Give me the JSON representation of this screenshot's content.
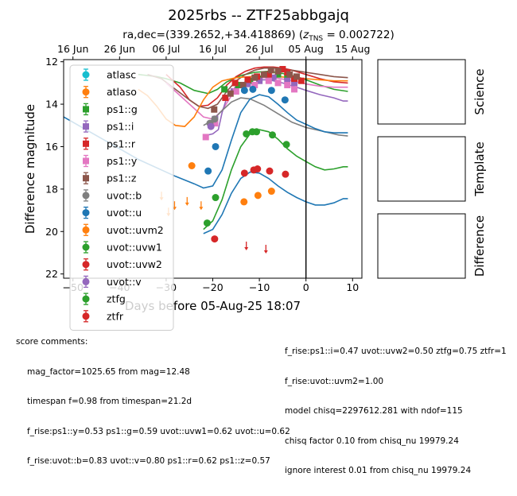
{
  "figure": {
    "title": "2025rbs -- ZTF25abbgajq",
    "subtitle_prefix": "ra,dec=(339.2652,+34.418869) (",
    "subtitle_z": "z",
    "subtitle_sub": "TNS",
    "subtitle_suffix": " = 0.002722)"
  },
  "side_panels": [
    "Science",
    "Template",
    "Difference"
  ],
  "score_comments": {
    "header": "score comments:",
    "left": [
      "mag_factor=1025.65 from mag=12.48",
      "timespan f=0.98 from timespan=21.2d",
      "f_rise:ps1::y=0.53 ps1::g=0.59 uvot::uvw1=0.62 uvot::u=0.62",
      "f_rise:uvot::b=0.83 uvot::v=0.80 ps1::r=0.62 ps1::z=0.57"
    ],
    "right": [
      "f_rise:ps1::i=0.47 uvot::uvw2=0.50 ztfg=0.75 ztfr=1",
      "f_rise:uvot::uvm2=1.00",
      "model chisq=2297612.281 with ndof=115",
      "chisq factor 0.10 from chisq_nu 19979.24",
      "ignore interest 0.01 from chisq_nu 19979.24"
    ]
  },
  "chart_data": {
    "type": "scatter",
    "xlabel": "Days before 05-Aug-25 18:07",
    "ylabel": "Difference magnitude",
    "xlim": [
      -52,
      12
    ],
    "ylim": [
      22.2,
      11.9
    ],
    "y_inverted": true,
    "x_ticks": [
      -50,
      -40,
      -30,
      -20,
      -10,
      0,
      10
    ],
    "x_tick_labels": [
      "−50",
      "−40",
      "−30",
      "−20",
      "−10",
      "0",
      "10"
    ],
    "y_ticks": [
      12,
      14,
      16,
      18,
      20,
      22
    ],
    "top_axis_ticks": [
      {
        "label": "16 Jun",
        "x": -50
      },
      {
        "label": "26 Jun",
        "x": -40
      },
      {
        "label": "06 Jul",
        "x": -30
      },
      {
        "label": "16 Jul",
        "x": -20
      },
      {
        "label": "26 Jul",
        "x": -10
      },
      {
        "label": "05 Aug",
        "x": 0
      },
      {
        "label": "15 Aug",
        "x": 10
      }
    ],
    "vline_x": 0,
    "legend_position": "upper-left",
    "series": [
      {
        "name": "atlasc",
        "color": "#17becf",
        "marker": "circle",
        "points": []
      },
      {
        "name": "atlaso",
        "color": "#ff7f0e",
        "marker": "circle",
        "points": [
          [
            -24.5,
            16.9
          ],
          [
            -13.3,
            18.6
          ],
          [
            -10.3,
            18.3
          ],
          [
            -7.4,
            18.1
          ]
        ],
        "model": [
          [
            -36,
            13.3
          ],
          [
            -34,
            13.6
          ],
          [
            -32,
            14.1
          ],
          [
            -30,
            14.7
          ],
          [
            -28,
            15.0
          ],
          [
            -26,
            15.05
          ],
          [
            -24,
            14.6
          ],
          [
            -22,
            13.8
          ],
          [
            -20,
            13.2
          ],
          [
            -18,
            12.9
          ],
          [
            -15,
            12.75
          ],
          [
            -12,
            12.7
          ],
          [
            -9,
            12.68
          ],
          [
            -6,
            12.7
          ],
          [
            -3,
            12.75
          ],
          [
            0,
            12.8
          ],
          [
            3,
            12.85
          ],
          [
            6,
            12.9
          ],
          [
            9,
            12.9
          ]
        ]
      },
      {
        "name": "ps1::g",
        "color": "#2ca02c",
        "marker": "square",
        "points": [
          [
            -17.5,
            13.3
          ],
          [
            -14.5,
            13.1
          ],
          [
            -12,
            12.9
          ],
          [
            -10,
            12.8
          ],
          [
            -8,
            12.65
          ],
          [
            -6,
            12.6
          ],
          [
            -4,
            12.7
          ],
          [
            -2.5,
            12.8
          ]
        ]
      },
      {
        "name": "ps1::i",
        "color": "#9467bd",
        "marker": "square",
        "points": [
          [
            -19.5,
            14.7
          ],
          [
            -15.5,
            13.4
          ],
          [
            -12.5,
            13.05
          ],
          [
            -10,
            12.9
          ],
          [
            -7,
            12.75
          ],
          [
            -4,
            12.9
          ],
          [
            -2.5,
            13.0
          ]
        ]
      },
      {
        "name": "ps1::r",
        "color": "#d62728",
        "marker": "square",
        "points": [
          [
            -17.3,
            13.7
          ],
          [
            -15.2,
            13.0
          ],
          [
            -12.5,
            12.85
          ],
          [
            -10.5,
            12.7
          ],
          [
            -8,
            12.6
          ],
          [
            -5,
            12.35
          ],
          [
            -4,
            12.5
          ],
          [
            -2.5,
            12.8
          ],
          [
            -1,
            12.9
          ]
        ]
      },
      {
        "name": "ps1::y",
        "color": "#e377c2",
        "marker": "square",
        "points": [
          [
            -21.5,
            15.55
          ],
          [
            -19.5,
            14.9
          ],
          [
            -15,
            13.4
          ],
          [
            -11,
            13.1
          ],
          [
            -8,
            12.9
          ],
          [
            -6,
            13.0
          ],
          [
            -4,
            13.1
          ],
          [
            -2.5,
            13.3
          ]
        ]
      },
      {
        "name": "ps1::z",
        "color": "#8c564b",
        "marker": "square",
        "points": [
          [
            -19.7,
            14.25
          ],
          [
            -16.2,
            13.5
          ],
          [
            -13.5,
            13.1
          ],
          [
            -11,
            12.75
          ],
          [
            -9,
            12.6
          ],
          [
            -7.5,
            12.4
          ],
          [
            -6,
            12.45
          ],
          [
            -3.5,
            12.6
          ],
          [
            -2,
            12.7
          ]
        ]
      },
      {
        "name": "uvot::b",
        "color": "#7f7f7f",
        "marker": "circle",
        "points": [
          [
            -20.6,
            14.9
          ],
          [
            -19.6,
            14.7
          ]
        ]
      },
      {
        "name": "uvot::u",
        "color": "#1f77b4",
        "marker": "circle",
        "points": [
          [
            -21,
            17.15
          ],
          [
            -19.4,
            16.0
          ],
          [
            -13.2,
            13.35
          ],
          [
            -11.4,
            13.3
          ],
          [
            -7.4,
            13.35
          ],
          [
            -4.5,
            13.8
          ]
        ]
      },
      {
        "name": "uvot::uvm2",
        "color": "#ff7f0e",
        "marker": "circle",
        "points": []
      },
      {
        "name": "uvot::uvw1",
        "color": "#2ca02c",
        "marker": "circle",
        "points": [
          [
            -21.2,
            19.6
          ],
          [
            -19.4,
            18.4
          ],
          [
            -12.8,
            15.4
          ],
          [
            -11.5,
            15.3
          ],
          [
            -10.6,
            15.3
          ],
          [
            -7.2,
            15.45
          ],
          [
            -4.2,
            15.9
          ]
        ]
      },
      {
        "name": "uvot::uvw2",
        "color": "#d62728",
        "marker": "circle",
        "points": [
          [
            -19.6,
            20.35
          ],
          [
            -13.2,
            17.25
          ],
          [
            -11.2,
            17.1
          ],
          [
            -10.4,
            17.05
          ],
          [
            -7.8,
            17.15
          ],
          [
            -4.4,
            17.3
          ]
        ]
      },
      {
        "name": "uvot::v",
        "color": "#9467bd",
        "marker": "circle",
        "points": [
          [
            -20.4,
            15.05
          ]
        ]
      },
      {
        "name": "ztfg",
        "color": "#2ca02c",
        "marker": "circle",
        "points": []
      },
      {
        "name": "ztfr",
        "color": "#d62728",
        "marker": "circle",
        "points": []
      }
    ],
    "upper_limits": [
      {
        "x": -31.0,
        "y": 18.35,
        "color": "#ff7f0e"
      },
      {
        "x": -29.5,
        "y": 19.1,
        "color": "#ff7f0e"
      },
      {
        "x": -28.2,
        "y": 18.8,
        "color": "#ff7f0e"
      },
      {
        "x": -25.5,
        "y": 18.6,
        "color": "#ff7f0e"
      },
      {
        "x": -22.5,
        "y": 18.8,
        "color": "#ff7f0e"
      },
      {
        "x": -12.8,
        "y": 20.7,
        "color": "#d62728"
      },
      {
        "x": -8.6,
        "y": 20.85,
        "color": "#d62728"
      }
    ],
    "model_curves": [
      {
        "color": "#2ca02c",
        "points": [
          [
            -36,
            12.6
          ],
          [
            -34,
            12.65
          ],
          [
            -32,
            12.7
          ],
          [
            -30,
            12.8
          ],
          [
            -27,
            13.0
          ],
          [
            -24,
            13.35
          ],
          [
            -21,
            13.5
          ],
          [
            -19,
            13.3
          ],
          [
            -17,
            12.95
          ],
          [
            -14,
            12.65
          ],
          [
            -11,
            12.5
          ],
          [
            -8,
            12.45
          ],
          [
            -5,
            12.55
          ],
          [
            -2,
            12.7
          ],
          [
            0,
            12.85
          ],
          [
            3,
            13.1
          ],
          [
            6,
            13.3
          ],
          [
            9,
            13.4
          ]
        ]
      },
      {
        "color": "#d62728",
        "points": [
          [
            -30,
            12.6
          ],
          [
            -27,
            13.2
          ],
          [
            -25,
            13.8
          ],
          [
            -23,
            14.1
          ],
          [
            -21,
            14.05
          ],
          [
            -19,
            13.7
          ],
          [
            -17,
            13.1
          ],
          [
            -15,
            12.7
          ],
          [
            -13,
            12.45
          ],
          [
            -11,
            12.3
          ],
          [
            -9,
            12.25
          ],
          [
            -7,
            12.25
          ],
          [
            -5,
            12.3
          ],
          [
            -3,
            12.4
          ],
          [
            0,
            12.6
          ],
          [
            3,
            12.8
          ],
          [
            6,
            12.95
          ],
          [
            9,
            13.0
          ]
        ]
      },
      {
        "color": "#8c564b",
        "points": [
          [
            -34,
            12.6
          ],
          [
            -31,
            12.8
          ],
          [
            -28,
            13.3
          ],
          [
            -25,
            13.8
          ],
          [
            -23,
            14.1
          ],
          [
            -21,
            14.2
          ],
          [
            -19,
            14.0
          ],
          [
            -17,
            13.4
          ],
          [
            -15,
            12.9
          ],
          [
            -13,
            12.6
          ],
          [
            -11,
            12.4
          ],
          [
            -9,
            12.3
          ],
          [
            -6,
            12.3
          ],
          [
            -3,
            12.4
          ],
          [
            0,
            12.5
          ],
          [
            3,
            12.6
          ],
          [
            6,
            12.7
          ],
          [
            9,
            12.75
          ]
        ]
      },
      {
        "color": "#e377c2",
        "points": [
          [
            -30,
            13.0
          ],
          [
            -27,
            13.6
          ],
          [
            -24,
            14.2
          ],
          [
            -22,
            14.6
          ],
          [
            -20,
            14.7
          ],
          [
            -18,
            14.3
          ],
          [
            -16,
            13.6
          ],
          [
            -14,
            13.1
          ],
          [
            -12,
            12.85
          ],
          [
            -10,
            12.75
          ],
          [
            -7,
            12.75
          ],
          [
            -4,
            12.85
          ],
          [
            0,
            13.05
          ],
          [
            3,
            13.15
          ],
          [
            6,
            13.2
          ],
          [
            9,
            13.2
          ]
        ]
      },
      {
        "color": "#9467bd",
        "points": [
          [
            -22,
            15.5
          ],
          [
            -20,
            15.4
          ],
          [
            -18.8,
            15.2
          ],
          [
            -18,
            14.4
          ],
          [
            -17,
            13.7
          ],
          [
            -15,
            13.15
          ],
          [
            -13,
            12.95
          ],
          [
            -11,
            12.85
          ],
          [
            -8,
            12.85
          ],
          [
            -5,
            13.0
          ],
          [
            -2,
            13.2
          ],
          [
            0,
            13.35
          ],
          [
            3,
            13.55
          ],
          [
            6,
            13.7
          ],
          [
            8,
            13.85
          ],
          [
            9,
            13.85
          ]
        ]
      },
      {
        "color": "#7f7f7f",
        "points": [
          [
            -22,
            15.0
          ],
          [
            -20,
            14.75
          ],
          [
            -18,
            14.3
          ],
          [
            -16,
            13.9
          ],
          [
            -14,
            13.7
          ],
          [
            -12,
            13.75
          ],
          [
            -9,
            14.05
          ],
          [
            -6,
            14.45
          ],
          [
            -3,
            14.85
          ],
          [
            0,
            15.1
          ],
          [
            3,
            15.25
          ],
          [
            5,
            15.35
          ],
          [
            7,
            15.45
          ],
          [
            9,
            15.5
          ]
        ]
      },
      {
        "color": "#1f77b4",
        "points": [
          [
            -52,
            14.6
          ],
          [
            -48,
            15.1
          ],
          [
            -44,
            15.6
          ],
          [
            -40,
            16.1
          ],
          [
            -36,
            16.6
          ],
          [
            -32,
            17.0
          ],
          [
            -28,
            17.4
          ],
          [
            -24,
            17.75
          ],
          [
            -22,
            17.95
          ],
          [
            -20,
            17.85
          ],
          [
            -18,
            17.1
          ],
          [
            -16,
            15.7
          ],
          [
            -14,
            14.4
          ],
          [
            -12,
            13.75
          ],
          [
            -10,
            13.55
          ],
          [
            -8,
            13.65
          ],
          [
            -6,
            14.0
          ],
          [
            -4,
            14.4
          ],
          [
            -2,
            14.75
          ],
          [
            0,
            14.95
          ],
          [
            2,
            15.15
          ],
          [
            4,
            15.3
          ],
          [
            6,
            15.35
          ],
          [
            8,
            15.35
          ],
          [
            9,
            15.35
          ]
        ]
      },
      {
        "color": "#2ca02c",
        "points": [
          [
            -22,
            19.9
          ],
          [
            -20,
            19.5
          ],
          [
            -18,
            18.5
          ],
          [
            -16,
            17.1
          ],
          [
            -14,
            16.0
          ],
          [
            -12,
            15.4
          ],
          [
            -10,
            15.2
          ],
          [
            -8,
            15.3
          ],
          [
            -6,
            15.65
          ],
          [
            -4,
            16.1
          ],
          [
            -2,
            16.45
          ],
          [
            0,
            16.7
          ],
          [
            2,
            16.95
          ],
          [
            4,
            17.1
          ],
          [
            6,
            17.05
          ],
          [
            8,
            16.95
          ],
          [
            9,
            16.95
          ]
        ]
      },
      {
        "color": "#1f77b4",
        "points": [
          [
            -22,
            20.1
          ],
          [
            -20,
            19.9
          ],
          [
            -18,
            19.2
          ],
          [
            -16,
            18.2
          ],
          [
            -14,
            17.5
          ],
          [
            -12,
            17.2
          ],
          [
            -10,
            17.25
          ],
          [
            -8,
            17.5
          ],
          [
            -6,
            17.85
          ],
          [
            -4,
            18.15
          ],
          [
            -2,
            18.4
          ],
          [
            0,
            18.6
          ],
          [
            2,
            18.75
          ],
          [
            4,
            18.75
          ],
          [
            6,
            18.65
          ],
          [
            8,
            18.45
          ],
          [
            9,
            18.45
          ]
        ]
      }
    ]
  }
}
